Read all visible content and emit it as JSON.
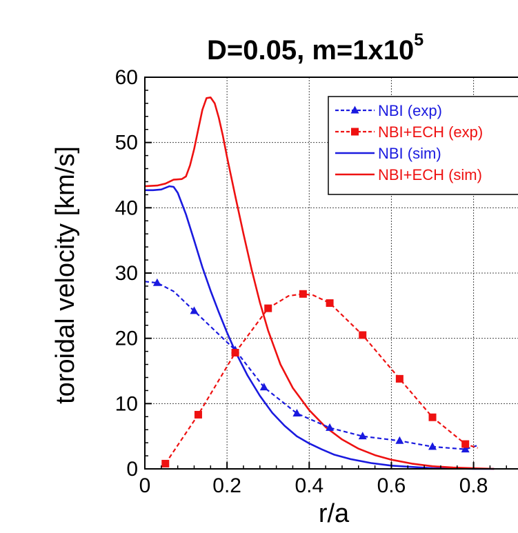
{
  "chart_data": {
    "type": "line",
    "title": {
      "base": "D=0.05, m=1x10",
      "superscript": "5"
    },
    "xlabel": "r/a",
    "ylabel": "toroidal velocity [km/s]",
    "xlim": [
      0,
      0.94
    ],
    "ylim": [
      0,
      60
    ],
    "xticks": [
      0,
      0.2,
      0.4,
      0.6,
      0.8
    ],
    "xtick_labels": [
      "0",
      "0.2",
      "0.4",
      "0.6",
      "0.8"
    ],
    "yticks": [
      0,
      10,
      20,
      30,
      40,
      50,
      60
    ],
    "ytick_labels": [
      "0",
      "10",
      "20",
      "30",
      "40",
      "50",
      "60"
    ],
    "grid": true,
    "legend_position": "top-right",
    "series": [
      {
        "name": "NBI (exp)",
        "color": "#1a1adf",
        "line_style": "dashed",
        "marker": "triangle",
        "x": [
          0.0,
          0.03,
          0.07,
          0.12,
          0.22,
          0.29,
          0.37,
          0.45,
          0.53,
          0.62,
          0.7,
          0.78,
          0.81
        ],
        "y": [
          28.7,
          28.5,
          27.2,
          24.2,
          18.2,
          12.5,
          8.5,
          6.3,
          5.0,
          4.3,
          3.4,
          3.0,
          3.6
        ],
        "marker_indices": [
          1,
          3,
          4,
          5,
          6,
          7,
          8,
          9,
          10,
          11
        ]
      },
      {
        "name": "NBI+ECH (exp)",
        "color": "#ee1111",
        "line_style": "dashed",
        "marker": "square",
        "x": [
          0.05,
          0.13,
          0.22,
          0.3,
          0.35,
          0.385,
          0.41,
          0.45,
          0.53,
          0.62,
          0.7,
          0.78,
          0.81
        ],
        "y": [
          0.8,
          8.3,
          17.8,
          24.6,
          26.5,
          26.8,
          26.6,
          25.4,
          20.5,
          13.8,
          7.9,
          3.8,
          3.2
        ],
        "marker_indices": [
          0,
          1,
          2,
          3,
          5,
          7,
          8,
          9,
          10,
          11
        ]
      },
      {
        "name": "NBI (sim)",
        "color": "#1a1adf",
        "line_style": "solid",
        "marker": "none",
        "x": [
          0.0,
          0.02,
          0.04,
          0.06,
          0.07,
          0.08,
          0.1,
          0.12,
          0.14,
          0.16,
          0.18,
          0.2,
          0.22,
          0.25,
          0.28,
          0.31,
          0.34,
          0.37,
          0.4,
          0.43,
          0.46,
          0.5,
          0.55,
          0.6,
          0.65,
          0.7,
          0.76,
          0.8,
          0.85
        ],
        "y": [
          42.7,
          42.7,
          42.8,
          43.3,
          43.2,
          42.3,
          39.0,
          35.0,
          30.9,
          27.3,
          24.0,
          20.9,
          18.0,
          14.3,
          11.2,
          8.6,
          6.6,
          5.0,
          3.9,
          3.0,
          2.2,
          1.5,
          0.9,
          0.5,
          0.3,
          0.1,
          0.05,
          0.0,
          0.0
        ]
      },
      {
        "name": "NBI+ECH (sim)",
        "color": "#ee1111",
        "line_style": "solid",
        "marker": "none",
        "x": [
          0.0,
          0.03,
          0.05,
          0.07,
          0.09,
          0.1,
          0.11,
          0.12,
          0.13,
          0.14,
          0.15,
          0.16,
          0.17,
          0.18,
          0.19,
          0.2,
          0.21,
          0.22,
          0.24,
          0.26,
          0.28,
          0.3,
          0.33,
          0.36,
          0.4,
          0.44,
          0.48,
          0.52,
          0.56,
          0.6,
          0.65,
          0.7,
          0.75,
          0.8,
          0.85
        ],
        "y": [
          43.3,
          43.4,
          43.7,
          44.3,
          44.4,
          44.8,
          46.5,
          49.0,
          52.0,
          55.0,
          56.8,
          56.9,
          56.0,
          53.8,
          51.0,
          47.8,
          44.8,
          41.8,
          36.0,
          30.5,
          25.5,
          21.2,
          16.0,
          12.4,
          9.0,
          6.4,
          4.5,
          3.1,
          2.1,
          1.4,
          0.8,
          0.4,
          0.2,
          0.1,
          0.0
        ]
      }
    ]
  }
}
